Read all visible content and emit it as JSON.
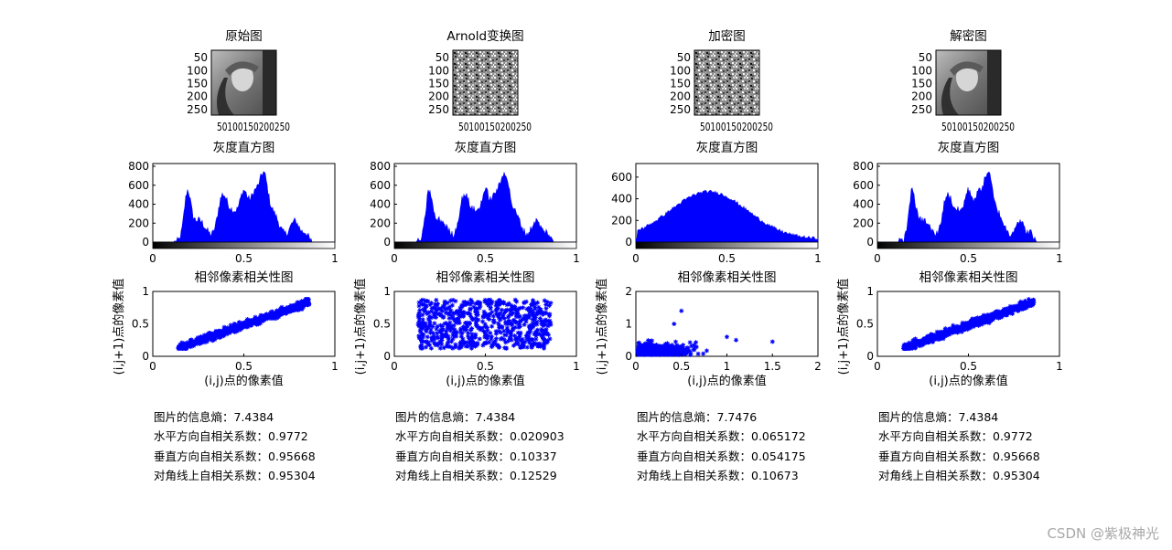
{
  "columns": [
    {
      "image_title": "原始图",
      "image_kind": "lena",
      "image_ticks_y": [
        "50",
        "100",
        "150",
        "200",
        "250"
      ],
      "image_ticks_x": [
        "50",
        "100",
        "150",
        "200",
        "250"
      ],
      "hist_title": "灰度直方图",
      "hist_profile": "lena",
      "corr_title": "相邻像素相关性图",
      "corr_profile": "correlated",
      "stats": [
        "图片的信息熵：7.4384",
        "水平方向自相关系数：0.9772",
        "垂直方向自相关系数：0.95668",
        "对角线上自相关系数：0.95304"
      ]
    },
    {
      "image_title": "Arnold变换图",
      "image_kind": "noise",
      "image_ticks_y": [
        "50",
        "100",
        "150",
        "200",
        "250"
      ],
      "image_ticks_x": [
        "50",
        "100",
        "150",
        "200",
        "250"
      ],
      "hist_title": "灰度直方图",
      "hist_profile": "lena",
      "corr_title": "相邻像素相关性图",
      "corr_profile": "uncorrelated",
      "stats": [
        "图片的信息熵：7.4384",
        "水平方向自相关系数：0.020903",
        "垂直方向自相关系数：0.10337",
        "对角线上自相关系数：0.12529"
      ]
    },
    {
      "image_title": "加密图",
      "image_kind": "noise",
      "image_ticks_y": [
        "50",
        "100",
        "150",
        "200",
        "250"
      ],
      "image_ticks_x": [
        "50",
        "100",
        "150",
        "200",
        "250"
      ],
      "hist_title": "灰度直方图",
      "hist_profile": "bell",
      "corr_title": "相邻像素相关性图",
      "corr_profile": "encrypted",
      "stats": [
        "图片的信息熵：7.7476",
        "水平方向自相关系数：0.065172",
        "垂直方向自相关系数：0.054175",
        "对角线上自相关系数：0.10673"
      ]
    },
    {
      "image_title": "解密图",
      "image_kind": "lena",
      "image_ticks_y": [
        "50",
        "100",
        "150",
        "200",
        "250"
      ],
      "image_ticks_x": [
        "50",
        "100",
        "150",
        "200",
        "250"
      ],
      "hist_title": "灰度直方图",
      "hist_profile": "lena",
      "corr_title": "相邻像素相关性图",
      "corr_profile": "correlated",
      "stats": [
        "图片的信息熵：7.4384",
        "水平方向自相关系数：0.9772",
        "垂直方向自相关系数：0.95668",
        "对角线上自相关系数：0.95304"
      ]
    }
  ],
  "chart_data": [
    {
      "type": "bar",
      "title": "灰度直方图",
      "ylim": [
        0,
        800
      ],
      "yticks": [
        "0",
        "200",
        "400",
        "600",
        "800"
      ],
      "xlim": [
        0,
        1
      ],
      "xticks": [
        "0",
        "0.5",
        "1"
      ],
      "note": "columns 1, 2 and 4"
    },
    {
      "type": "bar",
      "title": "灰度直方图",
      "ylim": [
        0,
        700
      ],
      "yticks": [
        "0",
        "200",
        "400",
        "600"
      ],
      "xlim": [
        0,
        1
      ],
      "xticks": [
        "0",
        "0.5",
        "1"
      ],
      "note": "column 3"
    },
    {
      "type": "scatter",
      "title": "相邻像素相关性图",
      "xlabel": "(i,j)点的像素值",
      "ylabel": "(i,j+1)点的像素值",
      "xlim": [
        0,
        1
      ],
      "ylim": [
        0,
        1
      ],
      "xticks": [
        "0",
        "0.5",
        "1"
      ],
      "yticks": [
        "0",
        "0.5",
        "1"
      ],
      "note": "columns 1, 2 and 4"
    },
    {
      "type": "scatter",
      "title": "相邻像素相关性图",
      "xlabel": "(i,j)点的像素值",
      "ylabel": "(i,j+1)点的像素值",
      "xlim": [
        0,
        2
      ],
      "ylim": [
        0,
        2
      ],
      "xticks": [
        "0",
        "0.5",
        "1",
        "1.5",
        "2"
      ],
      "yticks": [
        "0",
        "1",
        "2"
      ],
      "note": "column 3"
    }
  ],
  "colors": {
    "bars": "#0000ff",
    "markers": "#0000ff",
    "axes": "#000000"
  },
  "watermark": "CSDN @紫极神光"
}
